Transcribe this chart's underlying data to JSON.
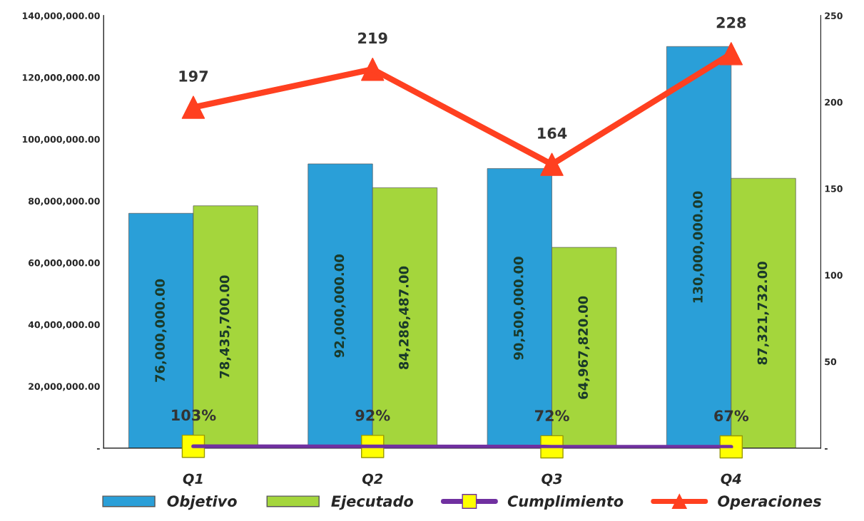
{
  "chart_data": {
    "type": "bar",
    "categories": [
      "Q1",
      "Q2",
      "Q3",
      "Q4"
    ],
    "series": [
      {
        "name": "Objetivo",
        "color": "#2a9fd8",
        "values": [
          76000000,
          92000000,
          90500000,
          130000000
        ],
        "value_labels": [
          "76,000,000.00",
          "92,000,000.00",
          "90,500,000.00",
          "130,000,000.00"
        ]
      },
      {
        "name": "Ejecutado",
        "color": "#a4d63c",
        "values": [
          78435700,
          84286487,
          64967820,
          87321732
        ],
        "value_labels": [
          "78,435,700.00",
          "84,286,487.00",
          "64,967,820.00",
          "87,321,732.00"
        ]
      },
      {
        "name": "Cumplimiento",
        "type": "line",
        "axis": "y2",
        "color": "#7030a0",
        "colors": [
          "#ffff00",
          "#ffff00",
          "#ffff00",
          "#ffff00"
        ],
        "marker": "square",
        "values": [
          1.03,
          0.92,
          0.72,
          0.67
        ],
        "value_labels": [
          "103%",
          "92%",
          "72%",
          "67%"
        ]
      },
      {
        "name": "Operaciones",
        "type": "line",
        "axis": "y2",
        "color": "#ff4020",
        "marker": "triangle",
        "values": [
          197,
          219,
          164,
          228
        ],
        "value_labels": [
          "197",
          "219",
          "164",
          "228"
        ]
      }
    ],
    "ylim": [
      0,
      140000000
    ],
    "yticks": [
      {
        "value": 0,
        "label": "-"
      },
      {
        "value": 20000000,
        "label": "20,000,000.00"
      },
      {
        "value": 40000000,
        "label": "40,000,000.00"
      },
      {
        "value": 60000000,
        "label": "60,000,000.00"
      },
      {
        "value": 80000000,
        "label": "80,000,000.00"
      },
      {
        "value": 100000000,
        "label": "100,000,000.00"
      },
      {
        "value": 120000000,
        "label": "120,000,000.00"
      },
      {
        "value": 140000000,
        "label": "140,000,000.00"
      }
    ],
    "y2lim": [
      0,
      250
    ],
    "y2ticks": [
      {
        "value": 0,
        "label": "-"
      },
      50,
      100,
      150,
      200,
      250
    ],
    "grid": false,
    "legend": "bottom"
  }
}
